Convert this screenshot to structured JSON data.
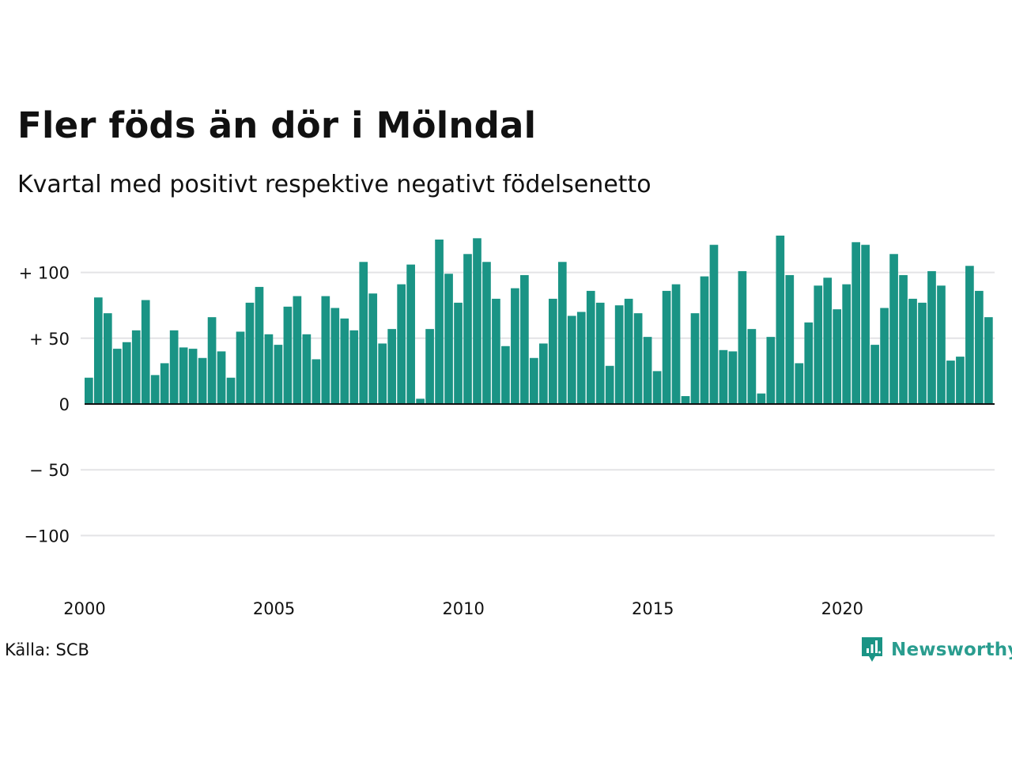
{
  "title": "Fler föds än dör i Mölndal",
  "subtitle": "Kvartal med positivt respektive negativt födelsenetto",
  "source": "Källa: SCB",
  "logo": {
    "text": "Newsworthy",
    "icon": "newsworthy-logo-icon",
    "color": "#1a9485"
  },
  "colors": {
    "bar": "#1a9485",
    "grid": "#e3e3e6",
    "zero_line": "#111111"
  },
  "chart_data": {
    "type": "bar",
    "title": "Fler föds än dör i Mölndal",
    "subtitle": "Kvartal med positivt respektive negativt födelsenetto",
    "xlabel": "",
    "ylabel": "",
    "x_ticks": [
      "2000",
      "2005",
      "2010",
      "2015",
      "2020"
    ],
    "x_tick_years": [
      2000,
      2005,
      2010,
      2015,
      2020
    ],
    "y_ticks": [
      {
        "value": 100,
        "label": "+ 100"
      },
      {
        "value": 50,
        "label": "+  50"
      },
      {
        "value": 0,
        "label": "0"
      },
      {
        "value": -50,
        "label": "− 50"
      },
      {
        "value": -100,
        "label": "−100"
      }
    ],
    "ylim": [
      -137,
      137
    ],
    "x_start": "2000 Q1",
    "x_end": "2024 Q1",
    "grid": true,
    "legend": "none",
    "values": [
      20,
      81,
      69,
      42,
      47,
      56,
      79,
      22,
      31,
      56,
      43,
      42,
      35,
      66,
      40,
      20,
      55,
      77,
      89,
      53,
      45,
      74,
      82,
      53,
      34,
      82,
      73,
      65,
      56,
      108,
      84,
      46,
      57,
      91,
      106,
      4,
      57,
      125,
      99,
      77,
      114,
      126,
      108,
      80,
      44,
      88,
      98,
      35,
      46,
      80,
      108,
      67,
      70,
      86,
      77,
      29,
      75,
      80,
      69,
      51,
      25,
      86,
      91,
      6,
      69,
      97,
      121,
      41,
      40,
      101,
      57,
      8,
      51,
      128,
      98,
      31,
      62,
      90,
      96,
      72,
      91,
      123,
      121,
      45,
      73,
      114,
      98,
      80,
      77,
      101,
      90,
      33,
      36,
      105,
      86,
      66
    ]
  }
}
